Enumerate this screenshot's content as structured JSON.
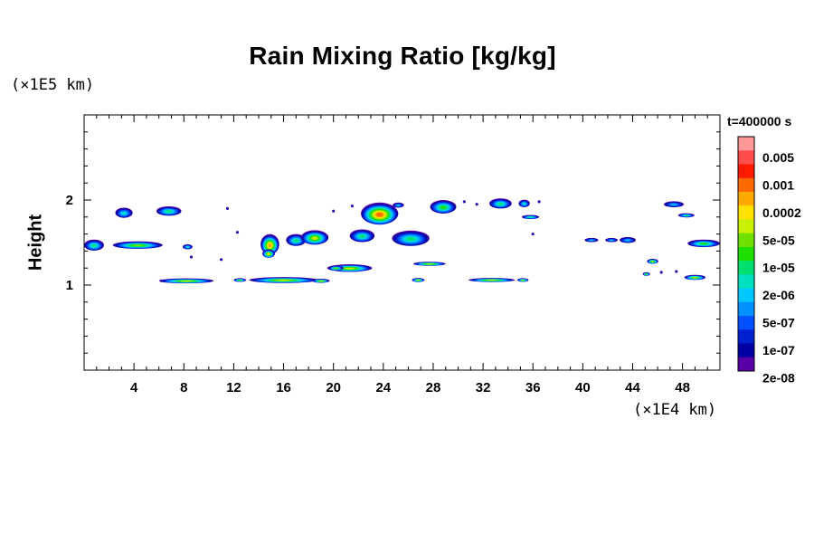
{
  "chart_data": {
    "type": "heatmap",
    "title": "Rain Mixing Ratio [kg/kg]",
    "ylabel": "Height",
    "xlabel": "",
    "x_unit": "(×1E4 km)",
    "y_unit": "(×1E5 km)",
    "time_label": "t=400000 s",
    "xlim": [
      0,
      51
    ],
    "ylim": [
      0,
      3
    ],
    "x_ticks": [
      4,
      8,
      12,
      16,
      20,
      24,
      28,
      32,
      36,
      40,
      44,
      48
    ],
    "x_minor_step": 1,
    "y_ticks": [
      1,
      2
    ],
    "y_minor_step": 0.2,
    "colorbar": {
      "labels": [
        "0.005",
        "0.001",
        "0.0002",
        "5e-05",
        "1e-05",
        "2e-06",
        "5e-07",
        "1e-07",
        "2e-08"
      ],
      "colors": [
        "#ff9999",
        "#ff4d4d",
        "#ff1a00",
        "#ff6a00",
        "#ffaa00",
        "#ffe100",
        "#c8f000",
        "#70e000",
        "#1ee000",
        "#00e070",
        "#00e0c0",
        "#00c8ff",
        "#0090ff",
        "#0050ff",
        "#0020d0",
        "#0000a0",
        "#5a00a8"
      ]
    },
    "patches": [
      {
        "x": 0.8,
        "y": 1.47,
        "w": 1.6,
        "h": 0.13,
        "peak": 3
      },
      {
        "x": 3.2,
        "y": 1.85,
        "w": 1.4,
        "h": 0.12,
        "peak": 2
      },
      {
        "x": 6.8,
        "y": 1.87,
        "w": 2.0,
        "h": 0.11,
        "peak": 3
      },
      {
        "x": 4.3,
        "y": 1.47,
        "w": 4.0,
        "h": 0.09,
        "peak": 5
      },
      {
        "x": 8.3,
        "y": 1.45,
        "w": 0.8,
        "h": 0.06,
        "peak": 2
      },
      {
        "x": 8.2,
        "y": 1.05,
        "w": 4.4,
        "h": 0.06,
        "peak": 6
      },
      {
        "x": 12.5,
        "y": 1.06,
        "w": 1.0,
        "h": 0.04,
        "peak": 5
      },
      {
        "x": 16.0,
        "y": 1.06,
        "w": 5.5,
        "h": 0.07,
        "peak": 6
      },
      {
        "x": 19.0,
        "y": 1.05,
        "w": 1.4,
        "h": 0.05,
        "peak": 6
      },
      {
        "x": 14.9,
        "y": 1.48,
        "w": 1.5,
        "h": 0.24,
        "peak": 8
      },
      {
        "x": 17.0,
        "y": 1.53,
        "w": 1.6,
        "h": 0.14,
        "peak": 3
      },
      {
        "x": 18.5,
        "y": 1.56,
        "w": 2.2,
        "h": 0.17,
        "peak": 6
      },
      {
        "x": 21.3,
        "y": 1.2,
        "w": 3.6,
        "h": 0.09,
        "peak": 6
      },
      {
        "x": 22.3,
        "y": 1.58,
        "w": 2.0,
        "h": 0.15,
        "peak": 3
      },
      {
        "x": 23.7,
        "y": 1.84,
        "w": 3.0,
        "h": 0.26,
        "peak": 9
      },
      {
        "x": 25.2,
        "y": 1.94,
        "w": 0.9,
        "h": 0.06,
        "peak": 1
      },
      {
        "x": 26.2,
        "y": 1.55,
        "w": 3.0,
        "h": 0.18,
        "peak": 3
      },
      {
        "x": 27.7,
        "y": 1.25,
        "w": 2.6,
        "h": 0.05,
        "peak": 6
      },
      {
        "x": 26.8,
        "y": 1.06,
        "w": 1.0,
        "h": 0.05,
        "peak": 6
      },
      {
        "x": 28.8,
        "y": 1.92,
        "w": 2.1,
        "h": 0.16,
        "peak": 4
      },
      {
        "x": 32.7,
        "y": 1.06,
        "w": 3.7,
        "h": 0.05,
        "peak": 6
      },
      {
        "x": 35.2,
        "y": 1.06,
        "w": 0.9,
        "h": 0.04,
        "peak": 6
      },
      {
        "x": 33.4,
        "y": 1.96,
        "w": 1.8,
        "h": 0.12,
        "peak": 3
      },
      {
        "x": 35.3,
        "y": 1.96,
        "w": 0.9,
        "h": 0.09,
        "peak": 2
      },
      {
        "x": 35.8,
        "y": 1.8,
        "w": 1.4,
        "h": 0.05,
        "peak": 3
      },
      {
        "x": 40.7,
        "y": 1.53,
        "w": 1.1,
        "h": 0.05,
        "peak": 1
      },
      {
        "x": 42.3,
        "y": 1.53,
        "w": 1.0,
        "h": 0.05,
        "peak": 1
      },
      {
        "x": 43.6,
        "y": 1.53,
        "w": 1.3,
        "h": 0.07,
        "peak": 1
      },
      {
        "x": 45.6,
        "y": 1.28,
        "w": 0.9,
        "h": 0.06,
        "peak": 6
      },
      {
        "x": 45.1,
        "y": 1.13,
        "w": 0.6,
        "h": 0.04,
        "peak": 5
      },
      {
        "x": 47.3,
        "y": 1.95,
        "w": 1.6,
        "h": 0.07,
        "peak": 1
      },
      {
        "x": 48.3,
        "y": 1.82,
        "w": 1.3,
        "h": 0.05,
        "peak": 3
      },
      {
        "x": 49.7,
        "y": 1.49,
        "w": 2.6,
        "h": 0.09,
        "peak": 4
      },
      {
        "x": 49.0,
        "y": 1.09,
        "w": 1.7,
        "h": 0.06,
        "peak": 6
      },
      {
        "x": 20.2,
        "y": 1.2,
        "w": 1.2,
        "h": 0.06,
        "peak": 5
      },
      {
        "x": 14.8,
        "y": 1.37,
        "w": 1.0,
        "h": 0.1,
        "peak": 7
      }
    ],
    "specks": [
      {
        "x": 11.5,
        "y": 1.9
      },
      {
        "x": 12.3,
        "y": 1.62
      },
      {
        "x": 11.0,
        "y": 1.3
      },
      {
        "x": 21.5,
        "y": 1.93
      },
      {
        "x": 20.0,
        "y": 1.87
      },
      {
        "x": 30.5,
        "y": 1.98
      },
      {
        "x": 31.5,
        "y": 1.95
      },
      {
        "x": 36.5,
        "y": 1.98
      },
      {
        "x": 36.0,
        "y": 1.6
      },
      {
        "x": 46.3,
        "y": 1.15
      },
      {
        "x": 47.5,
        "y": 1.16
      },
      {
        "x": 8.6,
        "y": 1.33
      },
      {
        "x": 6.2,
        "y": 1.05
      }
    ]
  }
}
